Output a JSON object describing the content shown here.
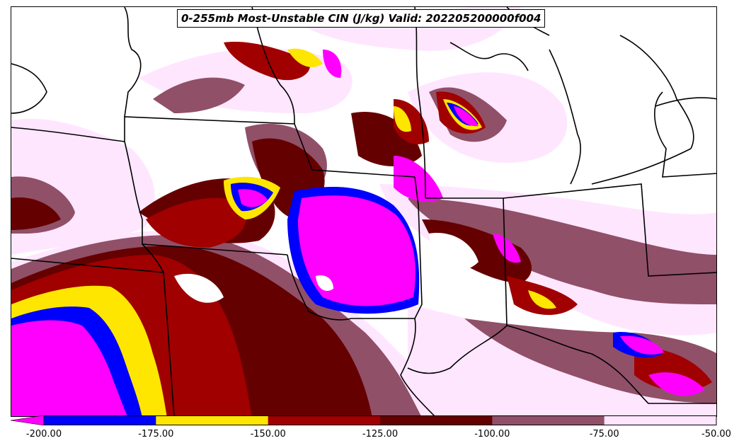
{
  "title": "0-255mb Most-Unstable CIN (J/kg) Valid: 202205200000f004",
  "colorbar": {
    "ticks": [
      "-200.00",
      "-175.00",
      "-150.00",
      "-125.00",
      "-100.00",
      "-75.00",
      "-50.00"
    ],
    "colors": [
      "#0000ff",
      "#ffe600",
      "#a00000",
      "#650000",
      "#905068",
      "#ffe6ff"
    ],
    "extend_color": "#ff00ff"
  },
  "fill_colors": {
    "lt_neg200": "#ff00ff",
    "neg200_neg175": "#0000ff",
    "neg175_neg150": "#ffe600",
    "neg150_neg125": "#a00000",
    "neg125_neg100": "#650000",
    "neg100_neg75": "#905068",
    "neg75_neg50": "#ffe6ff"
  }
}
